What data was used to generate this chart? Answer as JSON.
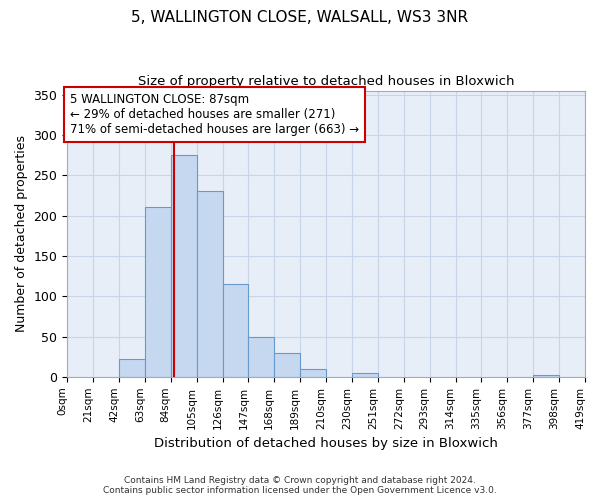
{
  "title": "5, WALLINGTON CLOSE, WALSALL, WS3 3NR",
  "subtitle": "Size of property relative to detached houses in Bloxwich",
  "xlabel": "Distribution of detached houses by size in Bloxwich",
  "ylabel": "Number of detached properties",
  "bar_edges": [
    0,
    21,
    42,
    63,
    84,
    105,
    126,
    147,
    168,
    189,
    210,
    231,
    252,
    273,
    294,
    315,
    336,
    357,
    378,
    399,
    420
  ],
  "bar_heights": [
    0,
    0,
    22,
    210,
    275,
    230,
    115,
    50,
    30,
    10,
    0,
    5,
    0,
    0,
    0,
    0,
    0,
    0,
    2,
    0
  ],
  "tick_labels": [
    "0sqm",
    "21sqm",
    "42sqm",
    "63sqm",
    "84sqm",
    "105sqm",
    "126sqm",
    "147sqm",
    "168sqm",
    "189sqm",
    "210sqm",
    "230sqm",
    "251sqm",
    "272sqm",
    "293sqm",
    "314sqm",
    "335sqm",
    "356sqm",
    "377sqm",
    "398sqm",
    "419sqm"
  ],
  "ylim": [
    0,
    355
  ],
  "yticks": [
    0,
    50,
    100,
    150,
    200,
    250,
    300,
    350
  ],
  "property_line_x": 87,
  "bar_color": "#c5d8f0",
  "bar_edge_color": "#6699cc",
  "line_color": "#cc0000",
  "annotation_text": "5 WALLINGTON CLOSE: 87sqm\n← 29% of detached houses are smaller (271)\n71% of semi-detached houses are larger (663) →",
  "annotation_box_color": "#ffffff",
  "annotation_box_edge": "#cc0000",
  "footer_line1": "Contains HM Land Registry data © Crown copyright and database right 2024.",
  "footer_line2": "Contains public sector information licensed under the Open Government Licence v3.0.",
  "background_color": "#e8eef8",
  "plot_background": "#ffffff",
  "grid_color": "#c8d4e8"
}
